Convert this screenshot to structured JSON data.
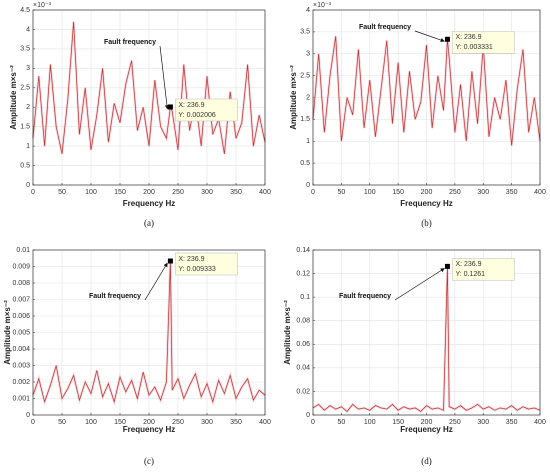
{
  "chart_data": [
    {
      "type": "line",
      "panel_label": "(a)",
      "xlabel": "Frequency Hz",
      "ylabel": "Amplitude m×s⁻²",
      "y_multiplier": "×10⁻³",
      "annotation": "Fault frequency",
      "datatip": [
        "X: 236.9",
        "Y: 0.002006"
      ],
      "peak_index": 24,
      "grid": true,
      "color": "#b8322e",
      "xlim": [
        0,
        400
      ],
      "xticks": [
        0,
        50,
        100,
        150,
        200,
        250,
        300,
        350,
        400
      ],
      "ylim": [
        0,
        4.5
      ],
      "yticks": [
        0,
        0.5,
        1,
        1.5,
        2,
        2.5,
        3,
        3.5,
        4,
        4.5
      ],
      "x": [
        0,
        10,
        20,
        30,
        40,
        50,
        60,
        70,
        80,
        90,
        100,
        110,
        120,
        130,
        140,
        150,
        160,
        170,
        180,
        190,
        200,
        210,
        220,
        230,
        236.9,
        240,
        250,
        260,
        270,
        280,
        290,
        300,
        310,
        320,
        330,
        340,
        350,
        360,
        370,
        380,
        390,
        400
      ],
      "values": [
        1.2,
        2.8,
        1.0,
        3.1,
        1.5,
        0.8,
        2.2,
        4.2,
        1.3,
        2.5,
        0.9,
        1.8,
        3.0,
        1.1,
        2.1,
        1.6,
        2.6,
        3.2,
        1.4,
        2.0,
        1.0,
        2.7,
        1.5,
        1.2,
        2.006,
        1.9,
        0.9,
        3.1,
        1.4,
        2.2,
        1.0,
        2.8,
        1.3,
        1.7,
        0.8,
        2.4,
        1.2,
        1.6,
        3.1,
        1.0,
        1.8,
        1.1
      ]
    },
    {
      "type": "line",
      "panel_label": "(b)",
      "xlabel": "Frequency Hz",
      "ylabel": "Amplitude m×s⁻²",
      "y_multiplier": "×10⁻³",
      "annotation": "Fault frequency",
      "datatip": [
        "X: 236.9",
        "Y: 0.003331"
      ],
      "peak_index": 24,
      "grid": true,
      "color": "#b8322e",
      "xlim": [
        0,
        400
      ],
      "xticks": [
        0,
        50,
        100,
        150,
        200,
        250,
        300,
        350,
        400
      ],
      "ylim": [
        0,
        4
      ],
      "yticks": [
        0,
        0.5,
        1,
        1.5,
        2,
        2.5,
        3,
        3.5,
        4
      ],
      "x": [
        0,
        10,
        20,
        30,
        40,
        50,
        60,
        70,
        80,
        90,
        100,
        110,
        120,
        130,
        140,
        150,
        160,
        170,
        180,
        190,
        200,
        210,
        220,
        230,
        236.9,
        240,
        250,
        260,
        270,
        280,
        290,
        300,
        310,
        320,
        330,
        340,
        350,
        360,
        370,
        380,
        390,
        400
      ],
      "values": [
        1.5,
        3.0,
        1.2,
        2.5,
        3.4,
        1.0,
        2.0,
        1.6,
        3.1,
        1.3,
        2.4,
        1.1,
        2.2,
        3.3,
        1.4,
        2.8,
        1.2,
        2.6,
        1.5,
        1.9,
        3.2,
        1.3,
        2.5,
        1.7,
        3.331,
        2.9,
        1.2,
        2.3,
        1.0,
        2.6,
        1.4,
        3.2,
        1.1,
        2.0,
        1.5,
        2.4,
        0.9,
        2.2,
        3.1,
        1.2,
        2.0,
        1.0
      ]
    },
    {
      "type": "line",
      "panel_label": "(c)",
      "xlabel": "Frequency Hz",
      "ylabel": "Amplitude m×s⁻²",
      "annotation": "Fault frequency",
      "datatip": [
        "X: 236.9",
        "Y: 0.009333"
      ],
      "peak_index": 24,
      "grid": true,
      "color": "#b8322e",
      "xlim": [
        0,
        400
      ],
      "xticks": [
        0,
        50,
        100,
        150,
        200,
        250,
        300,
        350,
        400
      ],
      "ylim": [
        0,
        0.01
      ],
      "yticks": [
        0,
        0.001,
        0.002,
        0.003,
        0.004,
        0.005,
        0.006,
        0.007,
        0.008,
        0.009,
        0.01
      ],
      "x": [
        0,
        10,
        20,
        30,
        40,
        50,
        60,
        70,
        80,
        90,
        100,
        110,
        120,
        130,
        140,
        150,
        160,
        170,
        180,
        190,
        200,
        210,
        220,
        230,
        236.9,
        240,
        250,
        260,
        270,
        280,
        290,
        300,
        310,
        320,
        330,
        340,
        350,
        360,
        370,
        380,
        390,
        400
      ],
      "values": [
        0.0012,
        0.0022,
        0.0008,
        0.0018,
        0.003,
        0.001,
        0.0016,
        0.0024,
        0.0009,
        0.002,
        0.0013,
        0.0027,
        0.0011,
        0.0019,
        0.0008,
        0.0023,
        0.0014,
        0.0021,
        0.001,
        0.0026,
        0.0012,
        0.0017,
        0.0009,
        0.002,
        0.009333,
        0.0015,
        0.0022,
        0.001,
        0.0018,
        0.0025,
        0.0011,
        0.0019,
        0.0008,
        0.0021,
        0.0013,
        0.0024,
        0.001,
        0.0017,
        0.0022,
        0.0009,
        0.0015,
        0.0012
      ]
    },
    {
      "type": "line",
      "panel_label": "(d)",
      "xlabel": "Frequency Hz",
      "ylabel": "Amplitude m×s⁻²",
      "annotation": "Fault frequency",
      "datatip": [
        "X: 236.9",
        "Y: 0.1261"
      ],
      "peak_index": 24,
      "grid": true,
      "color": "#b8322e",
      "xlim": [
        0,
        400
      ],
      "xticks": [
        0,
        50,
        100,
        150,
        200,
        250,
        300,
        350,
        400
      ],
      "ylim": [
        0,
        0.14
      ],
      "yticks": [
        0,
        0.02,
        0.04,
        0.06,
        0.08,
        0.1,
        0.12,
        0.14
      ],
      "x": [
        0,
        10,
        20,
        30,
        40,
        50,
        60,
        70,
        80,
        90,
        100,
        110,
        120,
        130,
        140,
        150,
        160,
        170,
        180,
        190,
        200,
        210,
        220,
        230,
        236.9,
        240,
        250,
        260,
        270,
        280,
        290,
        300,
        310,
        320,
        330,
        340,
        350,
        360,
        370,
        380,
        390,
        400
      ],
      "values": [
        0.006,
        0.009,
        0.004,
        0.008,
        0.005,
        0.007,
        0.003,
        0.009,
        0.005,
        0.006,
        0.004,
        0.008,
        0.006,
        0.005,
        0.009,
        0.004,
        0.007,
        0.005,
        0.006,
        0.003,
        0.008,
        0.005,
        0.006,
        0.004,
        0.1261,
        0.007,
        0.005,
        0.008,
        0.004,
        0.006,
        0.009,
        0.005,
        0.007,
        0.004,
        0.006,
        0.005,
        0.008,
        0.004,
        0.007,
        0.005,
        0.006,
        0.004
      ]
    }
  ]
}
